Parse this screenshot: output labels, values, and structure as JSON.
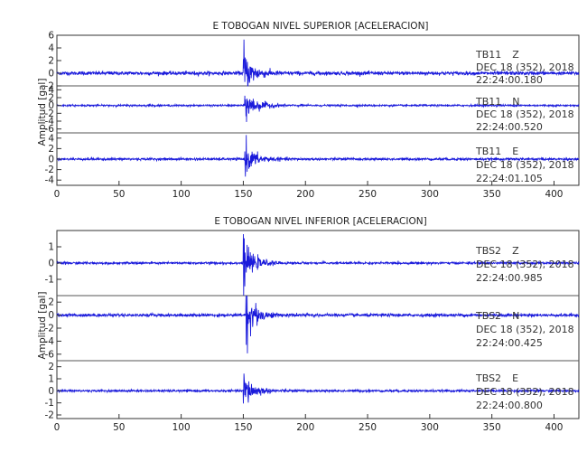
{
  "panels": [
    {
      "title": "E TOBOGAN NIVEL SUPERIOR [ACELERACION]",
      "ylabel": "Amplitud [gal]",
      "traces": [
        {
          "station": "TB11",
          "component": "Z",
          "date": "DEC 18 (352), 2018",
          "time": "22:24:00.180"
        },
        {
          "station": "TB11",
          "component": "N",
          "date": "DEC 18 (352), 2018",
          "time": "22:24:00.520"
        },
        {
          "station": "TB11",
          "component": "E",
          "date": "DEC 18 (352), 2018",
          "time": "22:24:01.105"
        }
      ]
    },
    {
      "title": "E TOBOGAN NIVEL INFERIOR [ACELERACION]",
      "ylabel": "Amplitud [gal]",
      "traces": [
        {
          "station": "TBS2",
          "component": "Z",
          "date": "DEC 18 (352), 2018",
          "time": "22:24:00.985"
        },
        {
          "station": "TBS2",
          "component": "N",
          "date": "DEC 18 (352), 2018",
          "time": "22:24:00.425"
        },
        {
          "station": "TBS2",
          "component": "E",
          "date": "DEC 18 (352), 2018",
          "time": "22:24:00.800"
        }
      ]
    }
  ],
  "chart_data": [
    {
      "type": "line",
      "title": "E TOBOGAN NIVEL SUPERIOR [ACELERACION]",
      "ylabel": "Amplitud [gal]",
      "xlim": [
        0,
        420
      ],
      "x_ticks": [
        0,
        50,
        100,
        150,
        200,
        250,
        300,
        350,
        400
      ],
      "line_color": "#1a1adb",
      "series": [
        {
          "name": "TB11 Z",
          "ylim": [
            -2,
            6
          ],
          "y_ticks": [
            -2,
            0,
            2,
            4,
            6
          ],
          "baseline": 0,
          "noise": 0.25,
          "onset_x": 150,
          "peak_abs": 5,
          "coda_decay": 8
        },
        {
          "name": "TB11 N",
          "ylim": [
            -7,
            5
          ],
          "y_ticks": [
            -6,
            -4,
            -2,
            0,
            2,
            4
          ],
          "baseline": 0,
          "noise": 0.2,
          "onset_x": 151,
          "peak_abs": 6,
          "coda_decay": 9
        },
        {
          "name": "TB11 E",
          "ylim": [
            -5,
            5
          ],
          "y_ticks": [
            -4,
            -2,
            0,
            2,
            4
          ],
          "baseline": 0,
          "noise": 0.2,
          "onset_x": 151,
          "peak_abs": 4,
          "coda_decay": 9
        }
      ]
    },
    {
      "type": "line",
      "title": "E TOBOGAN NIVEL INFERIOR [ACELERACION]",
      "ylabel": "Amplitud [gal]",
      "xlim": [
        0,
        420
      ],
      "x_ticks": [
        0,
        50,
        100,
        150,
        200,
        250,
        300,
        350,
        400
      ],
      "line_color": "#1a1adb",
      "series": [
        {
          "name": "TBS2 Z",
          "ylim": [
            -2,
            2
          ],
          "y_ticks": [
            -1,
            0,
            1
          ],
          "baseline": 0,
          "noise": 0.06,
          "onset_x": 150,
          "peak_abs": 1.8,
          "coda_decay": 8
        },
        {
          "name": "TBS2 N",
          "ylim": [
            -7,
            3
          ],
          "y_ticks": [
            -6,
            -4,
            -2,
            0,
            2
          ],
          "baseline": 0,
          "noise": 0.2,
          "onset_x": 152,
          "peak_abs": 6.5,
          "coda_decay": 7
        },
        {
          "name": "TBS2 E",
          "ylim": [
            -2.3,
            2.5
          ],
          "y_ticks": [
            -2,
            -1,
            0,
            1,
            2
          ],
          "baseline": 0,
          "noise": 0.08,
          "onset_x": 150,
          "peak_abs": 2.2,
          "coda_decay": 8
        }
      ]
    }
  ]
}
